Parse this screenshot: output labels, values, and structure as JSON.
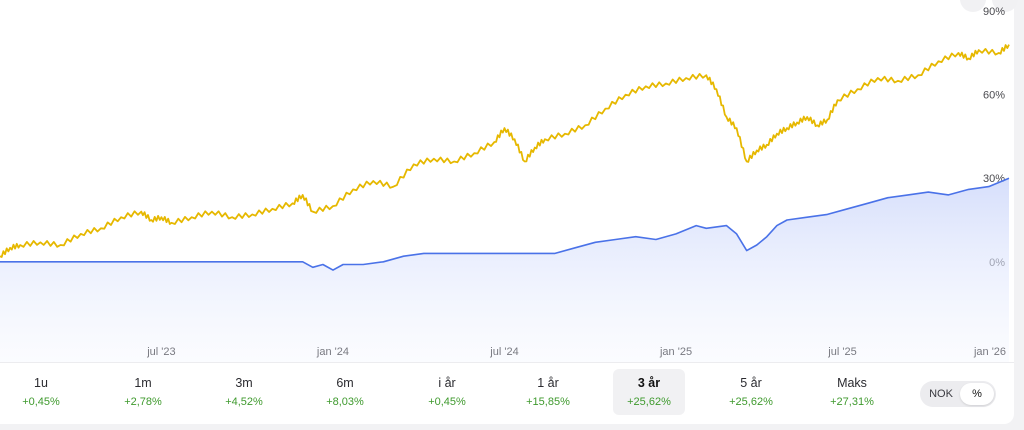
{
  "chart_data": {
    "type": "line",
    "ylim": [
      -36,
      94
    ],
    "y_ticks": [
      {
        "label": "90%",
        "value": 90
      },
      {
        "label": "60%",
        "value": 60
      },
      {
        "label": "30%",
        "value": 30
      },
      {
        "label": "0%",
        "value": 0
      }
    ],
    "x_ticks": [
      {
        "label": "jul '23",
        "x": 0.16
      },
      {
        "label": "jan '24",
        "x": 0.33
      },
      {
        "label": "jul '24",
        "x": 0.5
      },
      {
        "label": "jan '25",
        "x": 0.67
      },
      {
        "label": "jan '26",
        "x": 1.0
      }
    ],
    "x_ticks_extra": [
      {
        "label": "jul '25",
        "x": 0.835
      }
    ],
    "series": [
      {
        "color": "#e6b800",
        "points": [
          [
            0,
            2
          ],
          [
            0.01,
            5
          ],
          [
            0.02,
            6
          ],
          [
            0.04,
            7
          ],
          [
            0.06,
            6
          ],
          [
            0.08,
            10
          ],
          [
            0.1,
            12
          ],
          [
            0.12,
            16
          ],
          [
            0.14,
            18
          ],
          [
            0.15,
            15
          ],
          [
            0.16,
            16
          ],
          [
            0.17,
            14
          ],
          [
            0.19,
            16
          ],
          [
            0.21,
            18
          ],
          [
            0.23,
            16
          ],
          [
            0.25,
            17
          ],
          [
            0.27,
            19
          ],
          [
            0.29,
            21
          ],
          [
            0.3,
            24
          ],
          [
            0.31,
            18
          ],
          [
            0.33,
            20
          ],
          [
            0.35,
            26
          ],
          [
            0.37,
            29
          ],
          [
            0.39,
            27
          ],
          [
            0.41,
            35
          ],
          [
            0.43,
            37
          ],
          [
            0.45,
            36
          ],
          [
            0.47,
            39
          ],
          [
            0.49,
            43
          ],
          [
            0.5,
            48
          ],
          [
            0.51,
            44
          ],
          [
            0.52,
            36
          ],
          [
            0.53,
            41
          ],
          [
            0.54,
            44
          ],
          [
            0.56,
            46
          ],
          [
            0.58,
            49
          ],
          [
            0.6,
            55
          ],
          [
            0.62,
            60
          ],
          [
            0.64,
            63
          ],
          [
            0.66,
            64
          ],
          [
            0.68,
            66
          ],
          [
            0.7,
            67
          ],
          [
            0.71,
            62
          ],
          [
            0.72,
            52
          ],
          [
            0.73,
            48
          ],
          [
            0.74,
            36
          ],
          [
            0.75,
            40
          ],
          [
            0.76,
            42
          ],
          [
            0.77,
            46
          ],
          [
            0.78,
            48
          ],
          [
            0.79,
            50
          ],
          [
            0.8,
            52
          ],
          [
            0.81,
            49
          ],
          [
            0.82,
            51
          ],
          [
            0.83,
            58
          ],
          [
            0.85,
            62
          ],
          [
            0.87,
            66
          ],
          [
            0.89,
            65
          ],
          [
            0.91,
            67
          ],
          [
            0.93,
            72
          ],
          [
            0.95,
            75
          ],
          [
            0.96,
            73
          ],
          [
            0.97,
            76
          ],
          [
            0.99,
            75
          ],
          [
            1.0,
            78
          ]
        ]
      },
      {
        "color": "#4a72e8",
        "points": [
          [
            0,
            0
          ],
          [
            0.29,
            0
          ],
          [
            0.3,
            0
          ],
          [
            0.31,
            -2
          ],
          [
            0.32,
            -1
          ],
          [
            0.33,
            -3
          ],
          [
            0.34,
            -1
          ],
          [
            0.36,
            -1
          ],
          [
            0.38,
            0
          ],
          [
            0.4,
            2
          ],
          [
            0.42,
            3
          ],
          [
            0.45,
            3
          ],
          [
            0.5,
            3
          ],
          [
            0.55,
            3
          ],
          [
            0.57,
            5
          ],
          [
            0.59,
            7
          ],
          [
            0.61,
            8
          ],
          [
            0.63,
            9
          ],
          [
            0.65,
            8
          ],
          [
            0.67,
            10
          ],
          [
            0.69,
            13
          ],
          [
            0.7,
            12
          ],
          [
            0.72,
            13
          ],
          [
            0.73,
            10
          ],
          [
            0.74,
            4
          ],
          [
            0.75,
            6
          ],
          [
            0.76,
            9
          ],
          [
            0.77,
            13
          ],
          [
            0.78,
            15
          ],
          [
            0.8,
            16
          ],
          [
            0.82,
            17
          ],
          [
            0.84,
            19
          ],
          [
            0.86,
            21
          ],
          [
            0.88,
            23
          ],
          [
            0.9,
            24
          ],
          [
            0.92,
            25
          ],
          [
            0.94,
            24
          ],
          [
            0.96,
            26
          ],
          [
            0.98,
            27
          ],
          [
            1.0,
            30
          ]
        ]
      }
    ]
  },
  "periods": [
    {
      "label": "1u",
      "change": "+0,45%"
    },
    {
      "label": "1m",
      "change": "+2,78%"
    },
    {
      "label": "3m",
      "change": "+4,52%"
    },
    {
      "label": "6m",
      "change": "+8,03%"
    },
    {
      "label": "i år",
      "change": "+0,45%"
    },
    {
      "label": "1 år",
      "change": "+15,85%"
    },
    {
      "label": "3 år",
      "change": "+25,62%",
      "active": true
    },
    {
      "label": "5 år",
      "change": "+25,62%"
    },
    {
      "label": "Maks",
      "change": "+27,31%"
    }
  ],
  "toggle": {
    "nok": "NOK",
    "pct": "%"
  }
}
